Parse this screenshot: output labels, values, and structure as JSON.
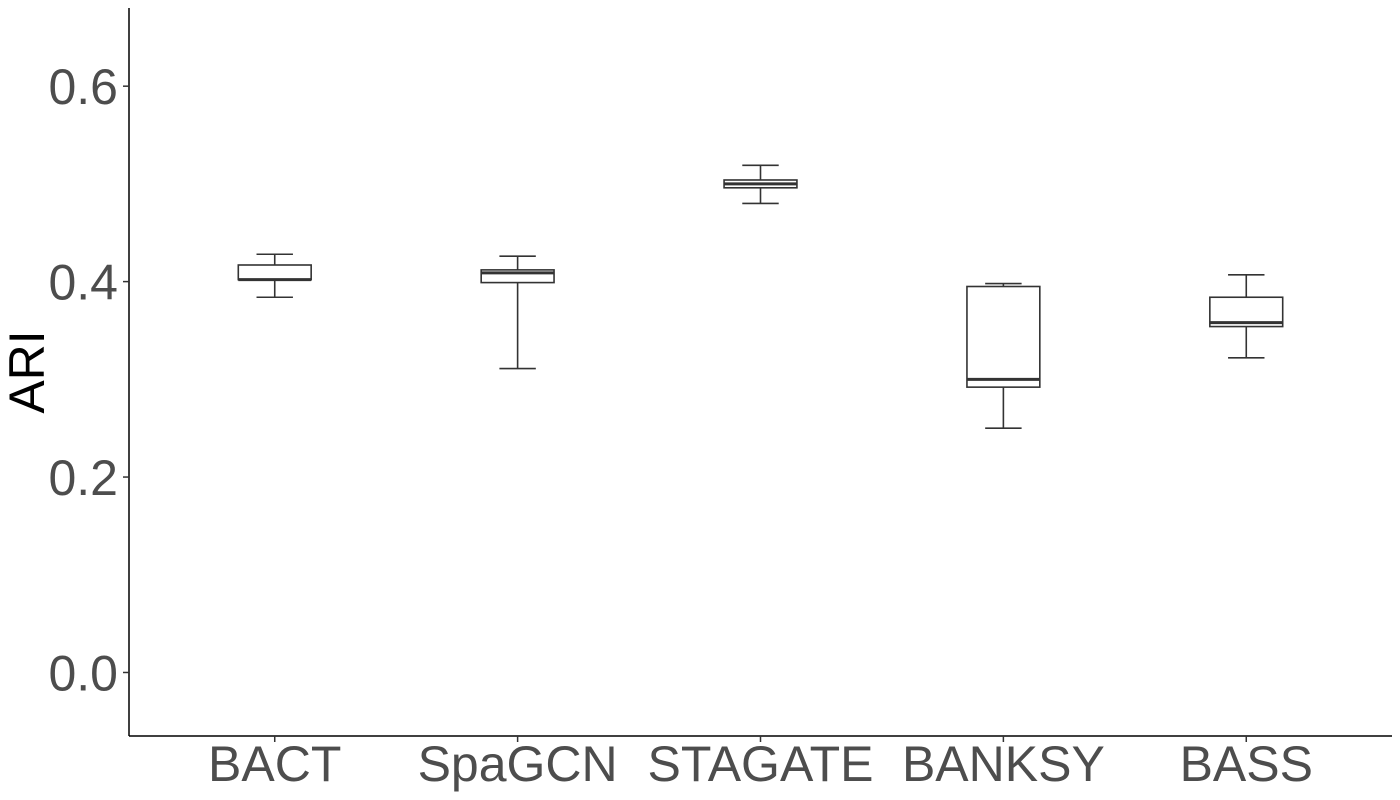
{
  "chart_data": {
    "type": "boxplot",
    "title": "",
    "xlabel": "",
    "ylabel": "ARI",
    "ylim": [
      -0.065,
      0.68
    ],
    "yticks": [
      0.0,
      0.2,
      0.4,
      0.6
    ],
    "ytick_labels": [
      "0.0",
      "0.2",
      "0.4",
      "0.6"
    ],
    "grid": false,
    "categories": [
      "BACT",
      "SpaGCN",
      "STAGATE",
      "BANKSY",
      "BASS"
    ],
    "boxes": [
      {
        "name": "BACT",
        "min": 0.384,
        "q1": 0.402,
        "median": 0.402,
        "q3": 0.417,
        "max": 0.428
      },
      {
        "name": "SpaGCN",
        "min": 0.311,
        "q1": 0.399,
        "median": 0.409,
        "q3": 0.412,
        "max": 0.426
      },
      {
        "name": "STAGATE",
        "min": 0.48,
        "q1": 0.496,
        "median": 0.5,
        "q3": 0.504,
        "max": 0.519
      },
      {
        "name": "BANKSY",
        "min": 0.25,
        "q1": 0.292,
        "median": 0.3,
        "q3": 0.395,
        "max": 0.398
      },
      {
        "name": "BASS",
        "min": 0.322,
        "q1": 0.354,
        "median": 0.358,
        "q3": 0.384,
        "max": 0.407
      }
    ]
  }
}
